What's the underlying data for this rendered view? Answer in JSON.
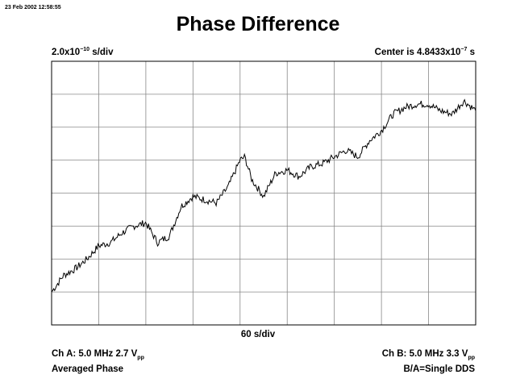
{
  "timestamp": "23 Feb 2002 12:58:55",
  "title": "Phase Difference",
  "scale": {
    "y_per_div_base": "2.0x10",
    "y_per_div_exp": "−10",
    "y_per_div_unit": " s/div",
    "center_base": "Center is 4.8433x10",
    "center_exp": "−7",
    "center_unit": " s",
    "x_per_div": "60 s/div"
  },
  "channel_a": {
    "line1_prefix": "Ch A: 5.0 MHz 2.7 V",
    "line1_sub": "pp",
    "line2": "Averaged Phase"
  },
  "channel_b": {
    "line1_prefix": "Ch B: 5.0 MHz 3.3 V",
    "line1_sub": "pp",
    "line2": "B/A=Single DDS"
  },
  "colors": {
    "trace": "#000000",
    "grid": "#888888",
    "frame": "#000000"
  },
  "chart_data": {
    "type": "line",
    "title": "Phase Difference",
    "xlabel": "60 s/div",
    "ylabel": "2.0x10^-10 s/div",
    "x_divisions": 9,
    "y_divisions": 8,
    "xlim": [
      0,
      9
    ],
    "ylim": [
      -4,
      4
    ],
    "grid": true,
    "series": [
      {
        "x": [
          0,
          0.25,
          0.5,
          0.75,
          1.0,
          1.25,
          1.5,
          1.75,
          2.0,
          2.25,
          2.5,
          2.75,
          3.0,
          3.25,
          3.5,
          3.75,
          4.0,
          4.1,
          4.25,
          4.5,
          4.75,
          5.0,
          5.25,
          5.5,
          5.75,
          6.0,
          6.25,
          6.5,
          6.75,
          7.0,
          7.25,
          7.5,
          7.75,
          8.0,
          8.25,
          8.5,
          8.75,
          9.0
        ],
        "y": [
          -3.0,
          -2.5,
          -2.3,
          -2.0,
          -1.6,
          -1.5,
          -1.2,
          -1.0,
          -0.9,
          -1.5,
          -1.3,
          -0.4,
          -0.1,
          -0.2,
          -0.3,
          0.2,
          1.0,
          1.1,
          0.4,
          -0.1,
          0.6,
          0.7,
          0.5,
          0.8,
          0.9,
          1.1,
          1.3,
          1.1,
          1.6,
          1.9,
          2.4,
          2.6,
          2.7,
          2.7,
          2.5,
          2.4,
          2.8,
          2.5
        ]
      }
    ]
  }
}
